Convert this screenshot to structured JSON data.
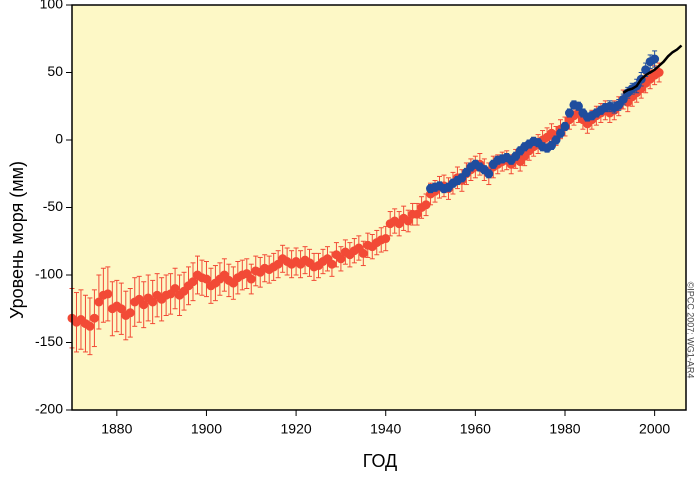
{
  "chart_data": {
    "type": "errorbar",
    "xlabel": "ГОД",
    "ylabel": "Уровень моря (мм)",
    "credit": "©IPCC 2007: WG1-AR4",
    "xlim": [
      1870,
      2007
    ],
    "ylim": [
      -200,
      100
    ],
    "xticks": [
      1880,
      1900,
      1920,
      1940,
      1960,
      1980,
      2000
    ],
    "yticks": [
      -200,
      -150,
      -100,
      -50,
      0,
      50,
      100
    ],
    "background": "#fdf8c6",
    "series": [
      {
        "color": "#f24a36",
        "x": [
          1870,
          1871,
          1872,
          1873,
          1874,
          1875,
          1876,
          1877,
          1878,
          1879,
          1880,
          1881,
          1882,
          1883,
          1884,
          1885,
          1886,
          1887,
          1888,
          1889,
          1890,
          1891,
          1892,
          1893,
          1894,
          1895,
          1896,
          1897,
          1898,
          1899,
          1900,
          1901,
          1902,
          1903,
          1904,
          1905,
          1906,
          1907,
          1908,
          1909,
          1910,
          1911,
          1912,
          1913,
          1914,
          1915,
          1916,
          1917,
          1918,
          1919,
          1920,
          1921,
          1922,
          1923,
          1924,
          1925,
          1926,
          1927,
          1928,
          1929,
          1930,
          1931,
          1932,
          1933,
          1934,
          1935,
          1936,
          1937,
          1938,
          1939,
          1940,
          1941,
          1942,
          1943,
          1944,
          1945,
          1946,
          1947,
          1948,
          1949,
          1950,
          1951,
          1952,
          1953,
          1954,
          1955,
          1956,
          1957,
          1958,
          1959,
          1960,
          1961,
          1962,
          1963,
          1964,
          1965,
          1966,
          1967,
          1968,
          1969,
          1970,
          1971,
          1972,
          1973,
          1974,
          1975,
          1976,
          1977,
          1978,
          1979,
          1980,
          1981,
          1982,
          1983,
          1984,
          1985,
          1986,
          1987,
          1988,
          1989,
          1990,
          1991,
          1992,
          1993,
          1994,
          1995,
          1996,
          1997,
          1998,
          1999,
          2000,
          2001
        ],
        "values": [
          -132,
          -135,
          -133,
          -136,
          -138,
          -132,
          -120,
          -115,
          -114,
          -125,
          -123,
          -125,
          -130,
          -128,
          -120,
          -118,
          -122,
          -117,
          -120,
          -115,
          -118,
          -115,
          -114,
          -110,
          -115,
          -112,
          -108,
          -105,
          -100,
          -102,
          -103,
          -108,
          -106,
          -103,
          -100,
          -104,
          -106,
          -102,
          -100,
          -99,
          -103,
          -97,
          -98,
          -95,
          -96,
          -94,
          -92,
          -88,
          -90,
          -92,
          -90,
          -92,
          -89,
          -91,
          -94,
          -93,
          -90,
          -88,
          -92,
          -85,
          -88,
          -83,
          -85,
          -82,
          -80,
          -84,
          -78,
          -79,
          -76,
          -74,
          -73,
          -62,
          -60,
          -62,
          -58,
          -60,
          -55,
          -55,
          -50,
          -48,
          -40,
          -38,
          -35,
          -34,
          -36,
          -32,
          -28,
          -30,
          -25,
          -22,
          -20,
          -18,
          -22,
          -25,
          -20,
          -18,
          -16,
          -15,
          -18,
          -14,
          -16,
          -12,
          -8,
          -5,
          -3,
          0,
          2,
          5,
          3,
          8,
          10,
          15,
          18,
          20,
          15,
          12,
          15,
          18,
          20,
          22,
          20,
          22,
          25,
          30,
          28,
          32,
          35,
          38,
          42,
          45,
          48,
          50
        ],
        "errors": [
          22,
          22,
          22,
          21,
          21,
          21,
          20,
          20,
          20,
          20,
          19,
          19,
          18,
          18,
          18,
          17,
          17,
          17,
          16,
          16,
          16,
          15,
          15,
          15,
          15,
          14,
          14,
          14,
          14,
          13,
          13,
          13,
          13,
          12,
          12,
          12,
          12,
          12,
          11,
          11,
          11,
          11,
          11,
          10,
          10,
          10,
          10,
          10,
          10,
          10,
          10,
          10,
          10,
          10,
          10,
          9,
          9,
          9,
          9,
          9,
          9,
          9,
          9,
          9,
          9,
          9,
          9,
          9,
          9,
          9,
          9,
          9,
          9,
          9,
          9,
          8,
          8,
          8,
          8,
          8,
          8,
          8,
          8,
          8,
          8,
          8,
          8,
          8,
          8,
          8,
          8,
          8,
          8,
          8,
          8,
          7,
          7,
          7,
          7,
          7,
          7,
          7,
          7,
          7,
          7,
          7,
          7,
          7,
          7,
          7,
          7,
          7,
          7,
          7,
          7,
          7,
          7,
          7,
          7,
          7,
          7,
          7,
          7,
          7,
          7,
          7,
          7,
          7,
          7,
          7,
          7,
          7
        ]
      },
      {
        "color": "#1f4d9e",
        "x": [
          1950,
          1951,
          1952,
          1953,
          1954,
          1955,
          1956,
          1957,
          1958,
          1959,
          1960,
          1961,
          1962,
          1963,
          1964,
          1965,
          1966,
          1967,
          1968,
          1969,
          1970,
          1971,
          1972,
          1973,
          1974,
          1975,
          1976,
          1977,
          1978,
          1979,
          1980,
          1981,
          1982,
          1983,
          1984,
          1985,
          1986,
          1987,
          1988,
          1989,
          1990,
          1991,
          1992,
          1993,
          1994,
          1995,
          1996,
          1997,
          1998,
          1999,
          2000
        ],
        "values": [
          -36,
          -35,
          -34,
          -36,
          -35,
          -32,
          -30,
          -28,
          -24,
          -20,
          -18,
          -20,
          -22,
          -25,
          -18,
          -15,
          -14,
          -13,
          -15,
          -12,
          -8,
          -5,
          -3,
          -1,
          -2,
          -5,
          -6,
          -4,
          0,
          5,
          10,
          20,
          26,
          25,
          20,
          17,
          18,
          20,
          22,
          24,
          25,
          24,
          26,
          30,
          35,
          38,
          40,
          45,
          52,
          58,
          60
        ],
        "errors": [
          3,
          3,
          3,
          3,
          3,
          3,
          3,
          3,
          3,
          3,
          3,
          3,
          3,
          3,
          3,
          3,
          3,
          3,
          3,
          3,
          3,
          3,
          3,
          3,
          3,
          3,
          3,
          3,
          3,
          3,
          3,
          3,
          3,
          3,
          3,
          3,
          3,
          3,
          3,
          3,
          4,
          4,
          4,
          4,
          4,
          4,
          5,
          5,
          5,
          5,
          6
        ]
      },
      {
        "color": "#000000",
        "x": [
          1993,
          1994,
          1995,
          1996,
          1997,
          1998,
          1999,
          2000,
          2001,
          2002,
          2003,
          2004,
          2005,
          2006
        ],
        "values": [
          35,
          37,
          38,
          40,
          45,
          48,
          50,
          52,
          55,
          58,
          62,
          65,
          67,
          70
        ]
      }
    ]
  }
}
